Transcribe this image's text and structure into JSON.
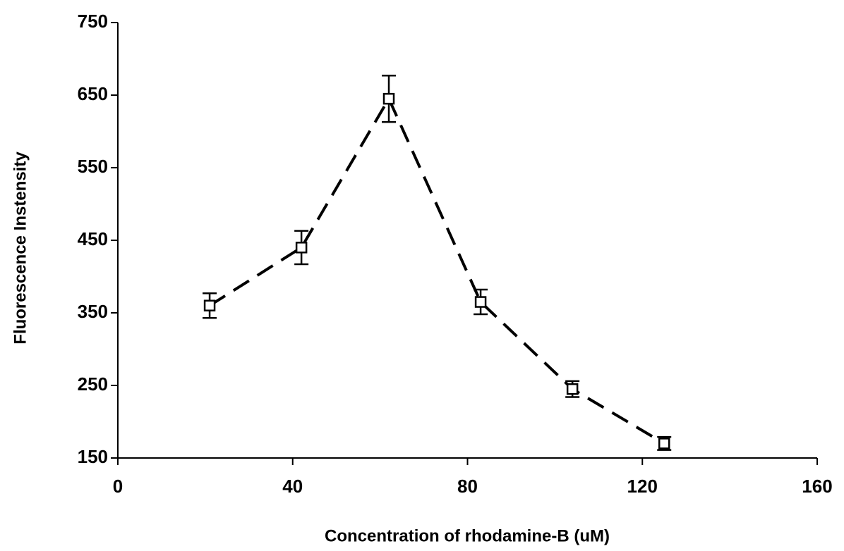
{
  "chart_data": {
    "type": "line",
    "xlabel": "Concentration of rhodamine-B (uM)",
    "ylabel": "Fluorescence Instensity",
    "x": [
      21,
      42,
      62,
      83,
      104,
      125
    ],
    "series": [
      {
        "color": "#000000",
        "values": [
          360,
          440,
          645,
          365,
          245,
          170
        ],
        "errors": [
          17,
          23,
          32,
          17,
          11,
          9
        ]
      }
    ],
    "xlim": [
      0,
      160
    ],
    "xticks": [
      0,
      40,
      80,
      120,
      160
    ],
    "ylim": [
      150,
      750
    ],
    "yticks": [
      150,
      250,
      350,
      450,
      550,
      650,
      750
    ],
    "grid": false
  }
}
